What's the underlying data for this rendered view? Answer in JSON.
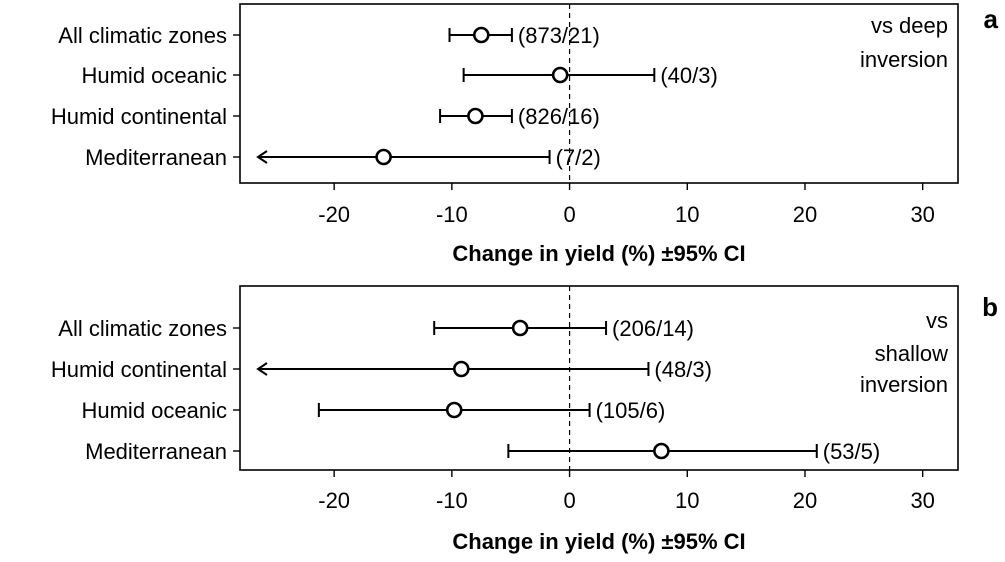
{
  "chart_data": [
    {
      "type": "scatter",
      "panel_label": "a",
      "annotation": [
        "vs deep",
        "inversion"
      ],
      "xlabel": "Change in yield (%) ±95% CI",
      "xlim": [
        -28,
        33
      ],
      "xticks": [
        "-20",
        "-10",
        "0",
        "10",
        "20",
        "30"
      ],
      "xtick_values": [
        -20,
        -10,
        0,
        10,
        20,
        30
      ],
      "reference_line": 0,
      "rows": [
        {
          "category": "All climatic zones",
          "value": -7.5,
          "ci_low": -10.2,
          "ci_high": -4.9,
          "label": "(873/21)",
          "low_truncated": false
        },
        {
          "category": "Humid oceanic",
          "value": -0.8,
          "ci_low": -9.0,
          "ci_high": 7.2,
          "label": "(40/3)",
          "low_truncated": false
        },
        {
          "category": "Humid continental",
          "value": -8.0,
          "ci_low": -11.0,
          "ci_high": -4.9,
          "label": "(826/16)",
          "low_truncated": false
        },
        {
          "category": "Mediterranean",
          "value": -15.8,
          "ci_low": -27.0,
          "ci_high": -1.7,
          "label": "(7/2)",
          "low_truncated": true
        }
      ]
    },
    {
      "type": "scatter",
      "panel_label": "b",
      "annotation": [
        "vs",
        "shallow",
        "inversion"
      ],
      "xlabel": "Change in yield (%) ±95% CI",
      "xlim": [
        -28,
        33
      ],
      "xticks": [
        "-20",
        "-10",
        "0",
        "10",
        "20",
        "30"
      ],
      "xtick_values": [
        -20,
        -10,
        0,
        10,
        20,
        30
      ],
      "reference_line": 0,
      "rows": [
        {
          "category": "All climatic zones",
          "value": -4.2,
          "ci_low": -11.5,
          "ci_high": 3.1,
          "label": "(206/14)",
          "low_truncated": false
        },
        {
          "category": "Humid continental",
          "value": -9.2,
          "ci_low": -27.0,
          "ci_high": 6.7,
          "label": "(48/3)",
          "low_truncated": true
        },
        {
          "category": "Humid oceanic",
          "value": -9.8,
          "ci_low": -21.3,
          "ci_high": 1.7,
          "label": "(105/6)",
          "low_truncated": false
        },
        {
          "category": "Mediterranean",
          "value": 7.8,
          "ci_low": -5.2,
          "ci_high": 21.0,
          "label": "(53/5)",
          "low_truncated": false
        }
      ]
    }
  ]
}
